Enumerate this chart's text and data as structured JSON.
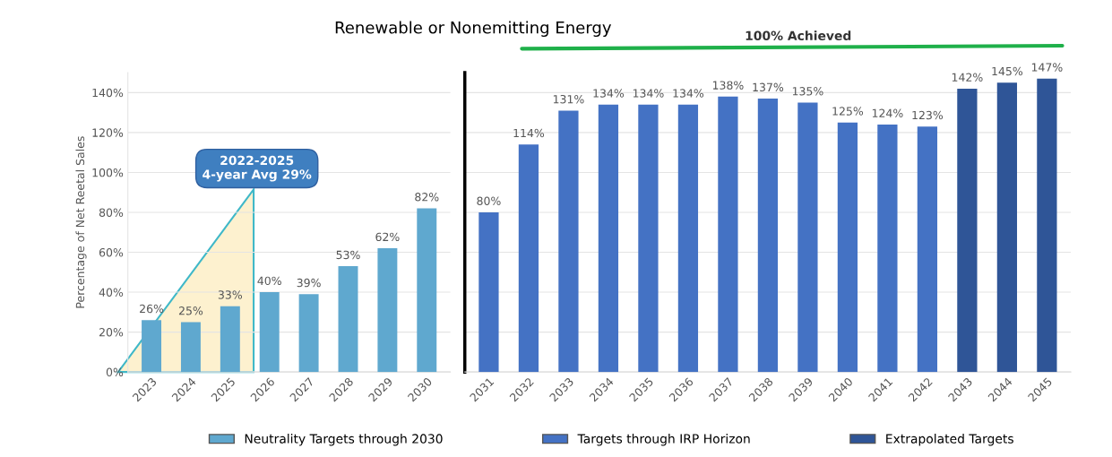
{
  "chart_data": [
    {
      "type": "bar",
      "title": "Renewable or Nonemitting Energy",
      "ylabel": "Percentage of Net Reetal Sales",
      "categories": [
        "2023",
        "2024",
        "2025",
        "2026",
        "2027",
        "2028",
        "2029",
        "2030"
      ],
      "series": [
        {
          "name": "Neutrality Targets through 2030",
          "color": "#5fa8cf",
          "values": [
            26,
            25,
            33,
            40,
            39,
            53,
            62,
            82
          ],
          "value_labels": [
            "26%",
            "25%",
            "33%",
            "40%",
            "39%",
            "53%",
            "62%",
            "82%"
          ]
        }
      ],
      "ylim": [
        0,
        150
      ],
      "yticks": [
        {
          "value": 0,
          "label": "0%"
        },
        {
          "value": 20,
          "label": "20%"
        },
        {
          "value": 40,
          "label": "40%"
        },
        {
          "value": 60,
          "label": "60%"
        },
        {
          "value": 80,
          "label": "80%"
        },
        {
          "value": 100,
          "label": "100%"
        },
        {
          "value": 120,
          "label": "120%"
        },
        {
          "value": 140,
          "label": "140%"
        }
      ],
      "grid": "y",
      "legend": "bottom",
      "annotations": [
        "2022-2025\n4-year Avg 29%"
      ]
    },
    {
      "type": "bar",
      "stacked": true,
      "categories": [
        "2031",
        "2032",
        "2033",
        "2034",
        "2035",
        "2036",
        "2037",
        "2038",
        "2039",
        "2040",
        "2041",
        "2042",
        "2043",
        "2044",
        "2045"
      ],
      "series": [
        {
          "name": "Targets through IRP Horizon",
          "color": "#4472c4",
          "values": [
            80,
            114,
            131,
            134,
            134,
            134,
            138,
            137,
            135,
            125,
            124,
            123,
            null,
            null,
            null
          ],
          "value_labels": [
            "80%",
            "114%",
            "131%",
            "134%",
            "134%",
            "134%",
            "138%",
            "137%",
            "135%",
            "125%",
            "124%",
            "123%",
            null,
            null,
            null
          ]
        },
        {
          "name": "Extrapolated Targets",
          "color": "#2f5597",
          "values": [
            null,
            null,
            null,
            null,
            null,
            null,
            null,
            null,
            null,
            null,
            null,
            null,
            142,
            145,
            147
          ],
          "value_labels": [
            null,
            null,
            null,
            null,
            null,
            null,
            null,
            null,
            null,
            null,
            null,
            null,
            "142%",
            "145%",
            "147%"
          ]
        }
      ],
      "ylim": [
        0,
        150
      ],
      "yticks": [
        0,
        20,
        40,
        60,
        80,
        100,
        120,
        140
      ],
      "grid": "y",
      "legend": "bottom",
      "tick_labels": "x",
      "annotations": [
        "100% Achieved"
      ]
    }
  ]
}
